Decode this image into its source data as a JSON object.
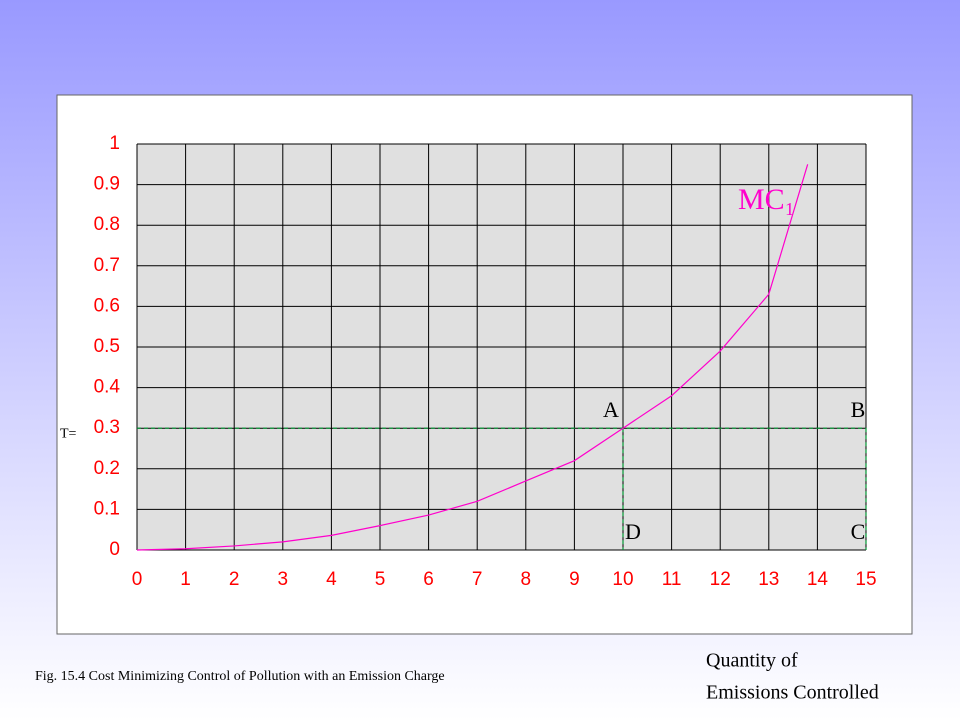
{
  "chart_data": {
    "type": "line",
    "x": [
      0,
      1,
      2,
      3,
      4,
      5,
      6,
      7,
      8,
      9,
      10,
      11,
      12,
      13,
      13.8
    ],
    "series": [
      {
        "name": "MC₁",
        "color": "#ff00cc",
        "values": [
          0,
          0.003,
          0.01,
          0.02,
          0.036,
          0.06,
          0.086,
          0.12,
          0.17,
          0.22,
          0.3,
          0.38,
          0.49,
          0.63,
          0.95
        ]
      }
    ],
    "xlim": [
      0,
      15
    ],
    "ylim": [
      0,
      1
    ],
    "xticks": [
      0,
      1,
      2,
      3,
      4,
      5,
      6,
      7,
      8,
      9,
      10,
      11,
      12,
      13,
      14,
      15
    ],
    "yticks": [
      0,
      0.1,
      0.2,
      0.3,
      0.4,
      0.5,
      0.6,
      0.7,
      0.8,
      0.9,
      1
    ],
    "grid": true,
    "charge": {
      "label": "T=",
      "value": 0.3
    },
    "points": [
      {
        "label": "A",
        "x": 10,
        "y": 0.3
      },
      {
        "label": "B",
        "x": 15,
        "y": 0.3
      },
      {
        "label": "C",
        "x": 15,
        "y": 0
      },
      {
        "label": "D",
        "x": 10,
        "y": 0
      }
    ],
    "caption": "Fig. 15.4  Cost Minimizing Control of Pollution with an Emission Charge",
    "x_label": [
      "Quantity of",
      "Emissions Controlled"
    ]
  }
}
